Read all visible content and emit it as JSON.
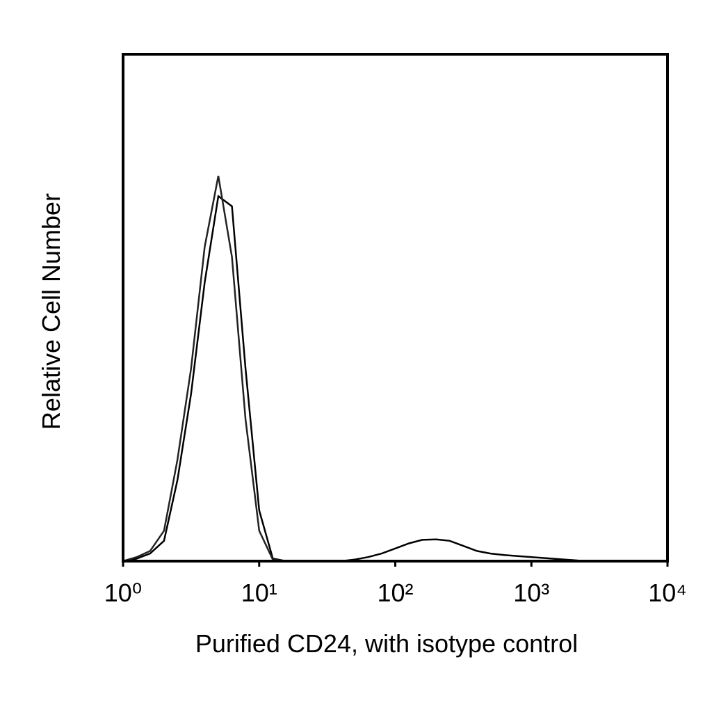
{
  "chart_data": {
    "type": "line",
    "x_label": "Purified CD24, with isotype control",
    "y_label": "Relative Cell Number",
    "x_scale": "log",
    "xlim": [
      1,
      10000
    ],
    "xticks": [
      {
        "value": 1,
        "label": "10⁰"
      },
      {
        "value": 10,
        "label": "10¹"
      },
      {
        "value": 100,
        "label": "10²"
      },
      {
        "value": 1000,
        "label": "10³"
      },
      {
        "value": 10000,
        "label": "10⁴"
      }
    ],
    "ylim": [
      0,
      100
    ],
    "x": [
      1,
      1.26,
      1.58,
      2,
      2.51,
      3.16,
      3.98,
      5.01,
      6.31,
      7.94,
      10,
      12.6,
      15.8,
      20,
      25.1,
      31.6,
      39.8,
      50.1,
      63.1,
      79.4,
      100,
      126,
      158,
      200,
      251,
      316,
      398,
      501,
      631,
      794,
      1000,
      1260,
      1580,
      2000,
      2510,
      3160
    ],
    "series": [
      {
        "color": "#000000",
        "values": [
          0,
          0.5,
          1.5,
          4,
          16,
          33,
          55,
          72,
          70,
          38,
          10,
          0.5,
          0,
          0,
          0,
          0,
          0,
          0.3,
          0.8,
          1.5,
          2.5,
          3.5,
          4.2,
          4.3,
          4,
          3,
          2,
          1.5,
          1.2,
          1,
          0.8,
          0.6,
          0.4,
          0.2,
          0,
          0
        ]
      },
      {
        "color": "#222222",
        "values": [
          0,
          0.8,
          2,
          6,
          20,
          38,
          62,
          76,
          60,
          28,
          6,
          0.3,
          0,
          0,
          0,
          0,
          0,
          0,
          0,
          0,
          0,
          0,
          0,
          0,
          0,
          0,
          0,
          0,
          0,
          0,
          0,
          0,
          0,
          0,
          0,
          0
        ]
      }
    ]
  }
}
